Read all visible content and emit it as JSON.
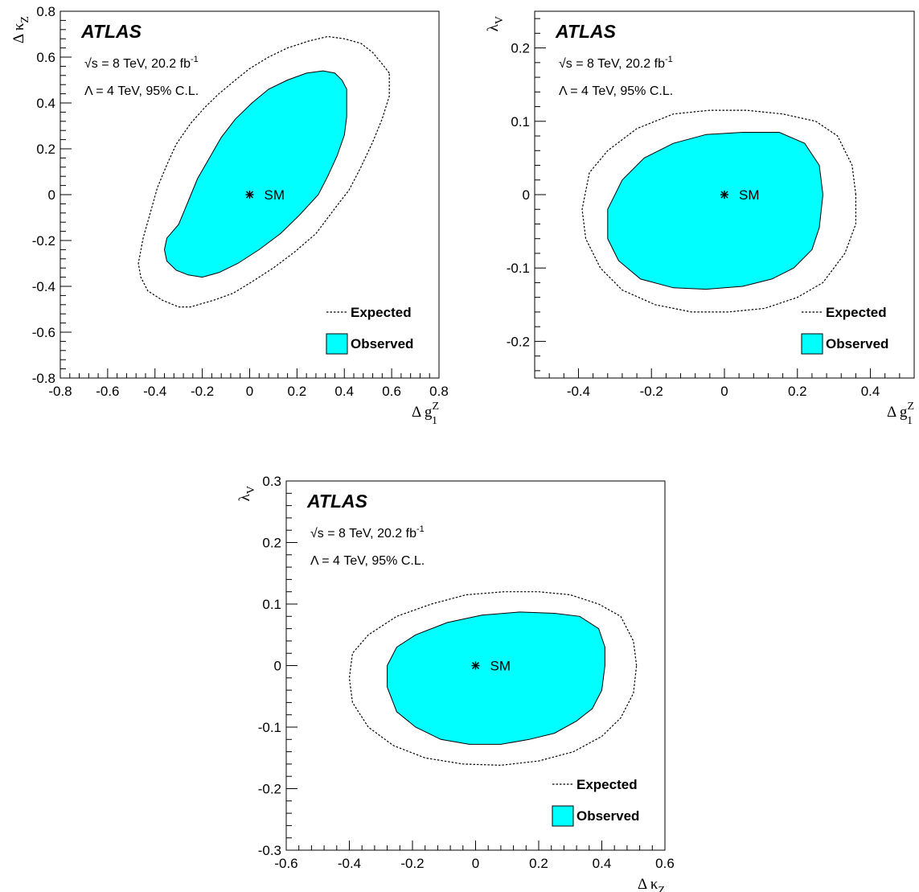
{
  "chart_data": [
    {
      "type": "contour",
      "panel": "top-left",
      "xlabel": "Δ g_1^Z",
      "ylabel": "Δ κ_Z",
      "xlim": [
        -0.8,
        0.8
      ],
      "ylim": [
        -0.8,
        0.8
      ],
      "xticks": [
        -0.8,
        -0.6,
        -0.4,
        -0.2,
        0,
        0.2,
        0.4,
        0.6,
        0.8
      ],
      "yticks": [
        -0.8,
        -0.6,
        -0.4,
        -0.2,
        0,
        0.2,
        0.4,
        0.6,
        0.8
      ],
      "xtick_labels": [
        "-0.8",
        "-0.6",
        "-0.4",
        "-0.2",
        "0",
        "0.2",
        "0.4",
        "0.6",
        "0.8"
      ],
      "ytick_labels": [
        "-0.8",
        "-0.6",
        "-0.4",
        "-0.2",
        "0",
        "0.2",
        "0.4",
        "0.6",
        "0.8"
      ],
      "atlas_label": "ATLAS",
      "energy_label": "√s = 8 TeV, 20.2 fb",
      "energy_sup": "-1",
      "lambda_label": "Λ = 4 TeV, 95% C.L.",
      "sm_point": [
        0,
        0
      ],
      "sm_label": "SM",
      "legend": [
        "Expected",
        "Observed"
      ],
      "legend_position": "bottom-right",
      "expected": [
        [
          0.59,
          0.53
        ],
        [
          0.56,
          0.57
        ],
        [
          0.52,
          0.62
        ],
        [
          0.47,
          0.66
        ],
        [
          0.4,
          0.68
        ],
        [
          0.33,
          0.69
        ],
        [
          0.25,
          0.67
        ],
        [
          0.16,
          0.64
        ],
        [
          0.08,
          0.6
        ],
        [
          0.0,
          0.55
        ],
        [
          -0.06,
          0.5
        ],
        [
          -0.13,
          0.44
        ],
        [
          -0.19,
          0.38
        ],
        [
          -0.25,
          0.31
        ],
        [
          -0.31,
          0.22
        ],
        [
          -0.35,
          0.13
        ],
        [
          -0.39,
          0.03
        ],
        [
          -0.42,
          -0.08
        ],
        [
          -0.45,
          -0.19
        ],
        [
          -0.47,
          -0.3
        ],
        [
          -0.46,
          -0.36
        ],
        [
          -0.43,
          -0.42
        ],
        [
          -0.37,
          -0.46
        ],
        [
          -0.3,
          -0.49
        ],
        [
          -0.25,
          -0.49
        ],
        [
          -0.15,
          -0.46
        ],
        [
          -0.07,
          -0.43
        ],
        [
          0.01,
          -0.38
        ],
        [
          0.1,
          -0.32
        ],
        [
          0.19,
          -0.25
        ],
        [
          0.28,
          -0.17
        ],
        [
          0.36,
          -0.06
        ],
        [
          0.42,
          0.02
        ],
        [
          0.47,
          0.12
        ],
        [
          0.52,
          0.23
        ],
        [
          0.56,
          0.33
        ],
        [
          0.59,
          0.43
        ]
      ],
      "observed": [
        [
          0.41,
          0.41
        ],
        [
          0.41,
          0.46
        ],
        [
          0.39,
          0.5
        ],
        [
          0.36,
          0.53
        ],
        [
          0.31,
          0.54
        ],
        [
          0.24,
          0.53
        ],
        [
          0.16,
          0.5
        ],
        [
          0.08,
          0.46
        ],
        [
          0.01,
          0.4
        ],
        [
          -0.06,
          0.33
        ],
        [
          -0.12,
          0.25
        ],
        [
          -0.17,
          0.16
        ],
        [
          -0.22,
          0.07
        ],
        [
          -0.26,
          -0.03
        ],
        [
          -0.3,
          -0.13
        ],
        [
          -0.35,
          -0.19
        ],
        [
          -0.36,
          -0.24
        ],
        [
          -0.35,
          -0.29
        ],
        [
          -0.31,
          -0.33
        ],
        [
          -0.26,
          -0.35
        ],
        [
          -0.2,
          -0.36
        ],
        [
          -0.13,
          -0.34
        ],
        [
          -0.05,
          -0.3
        ],
        [
          0.04,
          -0.24
        ],
        [
          0.13,
          -0.17
        ],
        [
          0.21,
          -0.09
        ],
        [
          0.29,
          0.0
        ],
        [
          0.33,
          0.08
        ],
        [
          0.37,
          0.17
        ],
        [
          0.4,
          0.26
        ],
        [
          0.41,
          0.34
        ]
      ]
    },
    {
      "type": "contour",
      "panel": "top-right",
      "xlabel": "Δ g_1^Z",
      "ylabel": "λ_V",
      "xlim": [
        -0.52,
        0.52
      ],
      "ylim": [
        -0.25,
        0.25
      ],
      "xticks": [
        -0.4,
        -0.2,
        0,
        0.2,
        0.4
      ],
      "yticks": [
        -0.2,
        -0.1,
        0,
        0.1,
        0.2
      ],
      "xtick_labels": [
        "-0.4",
        "-0.2",
        "0",
        "0.2",
        "0.4"
      ],
      "ytick_labels": [
        "-0.2",
        "-0.1",
        "0",
        "0.1",
        "0.2"
      ],
      "atlas_label": "ATLAS",
      "energy_label": "√s = 8 TeV, 20.2 fb",
      "energy_sup": "-1",
      "lambda_label": "Λ = 4 TeV, 95% C.L.",
      "sm_point": [
        0,
        0
      ],
      "sm_label": "SM",
      "legend": [
        "Expected",
        "Observed"
      ],
      "legend_position": "bottom-right",
      "expected": [
        [
          0.36,
          0.0
        ],
        [
          0.35,
          0.04
        ],
        [
          0.31,
          0.08
        ],
        [
          0.25,
          0.1
        ],
        [
          0.16,
          0.11
        ],
        [
          0.06,
          0.115
        ],
        [
          -0.04,
          0.115
        ],
        [
          -0.14,
          0.11
        ],
        [
          -0.24,
          0.09
        ],
        [
          -0.32,
          0.06
        ],
        [
          -0.37,
          0.03
        ],
        [
          -0.39,
          -0.02
        ],
        [
          -0.38,
          -0.06
        ],
        [
          -0.34,
          -0.1
        ],
        [
          -0.28,
          -0.13
        ],
        [
          -0.19,
          -0.15
        ],
        [
          -0.09,
          -0.16
        ],
        [
          0.01,
          -0.16
        ],
        [
          0.11,
          -0.155
        ],
        [
          0.2,
          -0.14
        ],
        [
          0.27,
          -0.12
        ],
        [
          0.33,
          -0.08
        ],
        [
          0.36,
          -0.04
        ]
      ],
      "observed": [
        [
          0.27,
          0.0
        ],
        [
          0.26,
          0.04
        ],
        [
          0.22,
          0.07
        ],
        [
          0.15,
          0.085
        ],
        [
          0.05,
          0.085
        ],
        [
          -0.05,
          0.082
        ],
        [
          -0.14,
          0.07
        ],
        [
          -0.22,
          0.05
        ],
        [
          -0.28,
          0.02
        ],
        [
          -0.32,
          -0.02
        ],
        [
          -0.32,
          -0.06
        ],
        [
          -0.29,
          -0.09
        ],
        [
          -0.23,
          -0.115
        ],
        [
          -0.14,
          -0.127
        ],
        [
          -0.05,
          -0.129
        ],
        [
          0.05,
          -0.125
        ],
        [
          0.13,
          -0.115
        ],
        [
          0.19,
          -0.1
        ],
        [
          0.24,
          -0.075
        ],
        [
          0.26,
          -0.045
        ]
      ]
    },
    {
      "type": "contour",
      "panel": "bottom-center",
      "xlabel": "Δ κ_Z",
      "ylabel": "λ_V",
      "xlim": [
        -0.6,
        0.6
      ],
      "ylim": [
        -0.3,
        0.3
      ],
      "xticks": [
        -0.6,
        -0.4,
        -0.2,
        0,
        0.2,
        0.4,
        0.6
      ],
      "yticks": [
        -0.3,
        -0.2,
        -0.1,
        0,
        0.1,
        0.2,
        0.3
      ],
      "xtick_labels": [
        "-0.6",
        "-0.4",
        "-0.2",
        "0",
        "0.2",
        "0.4",
        "0.6"
      ],
      "ytick_labels": [
        "-0.3",
        "-0.2",
        "-0.1",
        "0",
        "0.1",
        "0.2",
        "0.3"
      ],
      "atlas_label": "ATLAS",
      "energy_label": "√s = 8 TeV, 20.2 fb",
      "energy_sup": "-1",
      "lambda_label": "Λ = 4 TeV, 95% C.L.",
      "sm_point": [
        0,
        0
      ],
      "sm_label": "SM",
      "legend": [
        "Expected",
        "Observed"
      ],
      "legend_position": "bottom-right",
      "expected": [
        [
          0.51,
          0.0
        ],
        [
          0.5,
          0.04
        ],
        [
          0.46,
          0.08
        ],
        [
          0.39,
          0.1
        ],
        [
          0.3,
          0.115
        ],
        [
          0.2,
          0.12
        ],
        [
          0.09,
          0.12
        ],
        [
          -0.03,
          0.115
        ],
        [
          -0.14,
          0.1
        ],
        [
          -0.25,
          0.08
        ],
        [
          -0.34,
          0.05
        ],
        [
          -0.39,
          0.02
        ],
        [
          -0.4,
          -0.02
        ],
        [
          -0.39,
          -0.06
        ],
        [
          -0.34,
          -0.1
        ],
        [
          -0.26,
          -0.13
        ],
        [
          -0.16,
          -0.15
        ],
        [
          -0.04,
          -0.16
        ],
        [
          0.08,
          -0.162
        ],
        [
          0.2,
          -0.155
        ],
        [
          0.31,
          -0.14
        ],
        [
          0.4,
          -0.115
        ],
        [
          0.46,
          -0.085
        ],
        [
          0.5,
          -0.045
        ]
      ],
      "observed": [
        [
          0.41,
          0.0
        ],
        [
          0.41,
          0.03
        ],
        [
          0.39,
          0.06
        ],
        [
          0.33,
          0.08
        ],
        [
          0.25,
          0.085
        ],
        [
          0.14,
          0.087
        ],
        [
          0.02,
          0.082
        ],
        [
          -0.09,
          0.07
        ],
        [
          -0.19,
          0.05
        ],
        [
          -0.25,
          0.03
        ],
        [
          -0.28,
          0.0
        ],
        [
          -0.28,
          -0.035
        ],
        [
          -0.25,
          -0.075
        ],
        [
          -0.19,
          -0.1
        ],
        [
          -0.11,
          -0.12
        ],
        [
          -0.02,
          -0.128
        ],
        [
          0.08,
          -0.128
        ],
        [
          0.17,
          -0.12
        ],
        [
          0.25,
          -0.11
        ],
        [
          0.32,
          -0.09
        ],
        [
          0.37,
          -0.07
        ],
        [
          0.4,
          -0.04
        ]
      ]
    }
  ]
}
